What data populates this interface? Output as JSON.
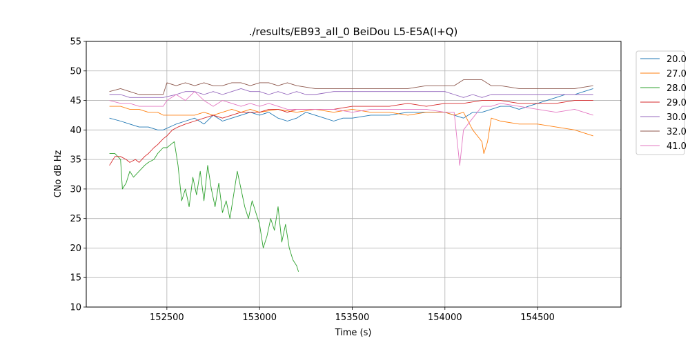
{
  "chart_data": {
    "type": "line",
    "title": "./results/EB93_all_0 BeiDou L5-E5A(I+Q)",
    "xlabel": "Time (s)",
    "ylabel": "CNo dB Hz",
    "xlim": [
      152065,
      154950
    ],
    "ylim": [
      10,
      55
    ],
    "xticks": [
      152500,
      153000,
      153500,
      154000,
      154500
    ],
    "yticks": [
      10,
      15,
      20,
      25,
      30,
      35,
      40,
      45,
      50,
      55
    ],
    "grid": true,
    "legend_position": "outside-top-right",
    "series": [
      {
        "name": "20.0",
        "color": "#1f77b4",
        "x": [
          152190,
          152250,
          152300,
          152350,
          152400,
          152450,
          152480,
          152550,
          152600,
          152650,
          152700,
          152750,
          152800,
          152850,
          152900,
          152950,
          153000,
          153050,
          153100,
          153150,
          153200,
          153250,
          153300,
          153350,
          153400,
          153450,
          153500,
          153600,
          153700,
          153800,
          153900,
          154000,
          154050,
          154100,
          154150,
          154200,
          154250,
          154300,
          154350,
          154400,
          154450,
          154500,
          154550,
          154600,
          154650,
          154700,
          154750,
          154800
        ],
        "y": [
          42,
          41.5,
          41,
          40.5,
          40.5,
          40,
          40,
          41,
          41.5,
          42,
          41,
          42.5,
          41.5,
          42,
          42.5,
          43,
          42.5,
          43,
          42,
          41.5,
          42,
          43,
          42.5,
          42,
          41.5,
          42,
          42,
          42.5,
          42.5,
          43,
          43,
          43,
          42.5,
          42,
          43,
          43,
          43.5,
          44,
          44,
          43.5,
          44,
          44.5,
          45,
          45.5,
          46,
          46,
          46.5,
          47
        ]
      },
      {
        "name": "27.0",
        "color": "#ff7f0e",
        "x": [
          152190,
          152250,
          152300,
          152350,
          152400,
          152450,
          152480,
          152550,
          152600,
          152650,
          152700,
          152750,
          152800,
          152850,
          152900,
          152950,
          153000,
          153100,
          153200,
          153300,
          153400,
          153500,
          153600,
          153700,
          153800,
          153900,
          154000,
          154050,
          154100,
          154150,
          154200,
          154210,
          154230,
          154250,
          154300,
          154400,
          154500,
          154600,
          154700,
          154800
        ],
        "y": [
          44,
          44,
          43.5,
          43.5,
          43,
          43,
          42.5,
          42.5,
          42.5,
          42.5,
          43,
          42.5,
          43,
          43.5,
          43,
          43.5,
          43,
          43.5,
          43,
          43.5,
          43,
          43.5,
          43,
          43,
          42.5,
          43,
          43,
          42.5,
          43,
          40,
          38,
          36,
          38,
          42,
          41.5,
          41,
          41,
          40.5,
          40,
          39
        ]
      },
      {
        "name": "28.0",
        "color": "#2ca02c",
        "x": [
          152190,
          152220,
          152250,
          152260,
          152280,
          152300,
          152320,
          152350,
          152380,
          152400,
          152430,
          152450,
          152480,
          152500,
          152520,
          152540,
          152560,
          152580,
          152600,
          152620,
          152640,
          152660,
          152680,
          152700,
          152720,
          152740,
          152760,
          152780,
          152800,
          152820,
          152840,
          152860,
          152880,
          152900,
          152920,
          152940,
          152960,
          152980,
          153000,
          153020,
          153040,
          153060,
          153080,
          153100,
          153120,
          153140,
          153160,
          153180,
          153200,
          153210
        ],
        "y": [
          36,
          36,
          35,
          30,
          31,
          33,
          32,
          33,
          34,
          34.5,
          35,
          36,
          37,
          37,
          37.5,
          38,
          34,
          28,
          30,
          27,
          32,
          29,
          33,
          28,
          34,
          30,
          27,
          31,
          26,
          28,
          25,
          29,
          33,
          30,
          27,
          25,
          28,
          26,
          24,
          20,
          22,
          25,
          23,
          27,
          21,
          24,
          20,
          18,
          17,
          16
        ]
      },
      {
        "name": "29.0",
        "color": "#d62728",
        "x": [
          152190,
          152220,
          152250,
          152280,
          152300,
          152330,
          152350,
          152380,
          152400,
          152430,
          152450,
          152480,
          152500,
          152530,
          152560,
          152600,
          152650,
          152700,
          152750,
          152800,
          152850,
          152900,
          152950,
          153000,
          153050,
          153100,
          153150,
          153200,
          153300,
          153400,
          153500,
          153600,
          153700,
          153800,
          153900,
          154000,
          154100,
          154200,
          154300,
          154400,
          154500,
          154600,
          154700,
          154800
        ],
        "y": [
          34,
          35.5,
          35.5,
          35,
          34.5,
          35,
          34.5,
          35.5,
          36,
          37,
          37.5,
          38.5,
          39,
          40,
          40.5,
          41,
          41.5,
          42,
          42.5,
          42,
          42.5,
          43,
          43,
          43,
          43.5,
          43.5,
          43,
          43.5,
          43.5,
          43.5,
          44,
          44,
          44,
          44.5,
          44,
          44.5,
          44.5,
          45,
          45,
          44.5,
          44.5,
          44.5,
          45,
          45
        ]
      },
      {
        "name": "30.0",
        "color": "#9467bd",
        "x": [
          152190,
          152250,
          152300,
          152350,
          152400,
          152450,
          152480,
          152550,
          152600,
          152650,
          152700,
          152750,
          152800,
          152850,
          152900,
          152950,
          153000,
          153050,
          153100,
          153150,
          153200,
          153250,
          153300,
          153400,
          153500,
          153600,
          153700,
          153800,
          153900,
          154000,
          154050,
          154100,
          154150,
          154200,
          154250,
          154300,
          154400,
          154500,
          154600,
          154700,
          154800
        ],
        "y": [
          46,
          46,
          45.5,
          45.5,
          45.5,
          45.5,
          45.5,
          46,
          46.5,
          46.5,
          46,
          46.5,
          46,
          46.5,
          47,
          46.5,
          46.5,
          46,
          46.5,
          46,
          46.5,
          46,
          46,
          46.5,
          46.5,
          46.5,
          46.5,
          46.5,
          46.5,
          46.5,
          46,
          45.5,
          46,
          45.5,
          46,
          46,
          46,
          46,
          46,
          46,
          46
        ]
      },
      {
        "name": "32.0",
        "color": "#8c564b",
        "x": [
          152190,
          152250,
          152300,
          152350,
          152400,
          152450,
          152480,
          152500,
          152550,
          152600,
          152650,
          152700,
          152750,
          152800,
          152850,
          152900,
          152950,
          153000,
          153050,
          153100,
          153150,
          153200,
          153300,
          153400,
          153500,
          153600,
          153700,
          153800,
          153900,
          154000,
          154050,
          154100,
          154150,
          154200,
          154250,
          154300,
          154400,
          154500,
          154600,
          154700,
          154800
        ],
        "y": [
          46.5,
          47,
          46.5,
          46,
          46,
          46,
          46,
          48,
          47.5,
          48,
          47.5,
          48,
          47.5,
          47.5,
          48,
          48,
          47.5,
          48,
          48,
          47.5,
          48,
          47.5,
          47,
          47,
          47,
          47,
          47,
          47,
          47.5,
          47.5,
          47.5,
          48.5,
          48.5,
          48.5,
          47.5,
          47.5,
          47,
          47,
          47,
          47,
          47.5
        ]
      },
      {
        "name": "41.0",
        "color": "#e377c2",
        "x": [
          152190,
          152250,
          152300,
          152350,
          152400,
          152450,
          152480,
          152500,
          152550,
          152600,
          152650,
          152700,
          152750,
          152800,
          152850,
          152900,
          152950,
          153000,
          153050,
          153100,
          153150,
          153200,
          153300,
          153400,
          153500,
          153600,
          153700,
          153800,
          153900,
          154000,
          154050,
          154080,
          154100,
          154150,
          154200,
          154250,
          154300,
          154400,
          154500,
          154600,
          154700,
          154750,
          154800
        ],
        "y": [
          45,
          44.5,
          44.5,
          44,
          44,
          44,
          44,
          45,
          46,
          45,
          46.5,
          45,
          44,
          45,
          44.5,
          44,
          44.5,
          44,
          44.5,
          44,
          43.5,
          43.5,
          43.5,
          43.5,
          43,
          43.5,
          43.5,
          43.5,
          43.5,
          43,
          43,
          34,
          40,
          42,
          44,
          44,
          44.5,
          44,
          43.5,
          43,
          43.5,
          43,
          42.5
        ]
      }
    ]
  }
}
